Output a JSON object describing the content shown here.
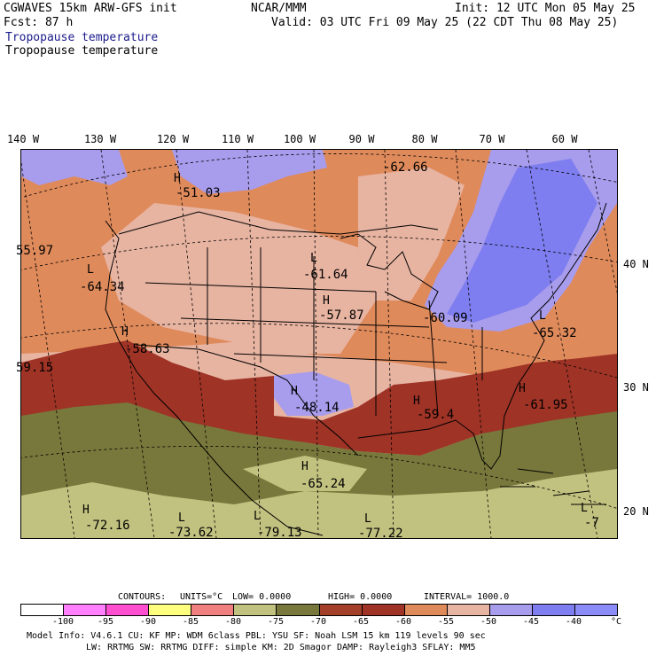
{
  "header": {
    "model_line": "CGWAVES 15km ARW-GFS init",
    "fcst_label": "Fcst:   87 h",
    "center": "NCAR/MMM",
    "init": "Init: 12 UTC Mon 05 May 25",
    "valid": "Valid: 03 UTC Fri 09 May 25 (22 CDT Thu 08 May 25)",
    "field_title_1": "Tropopause temperature",
    "field_title_2": "Tropopause temperature"
  },
  "map": {
    "lon_labels": [
      "140 W",
      "130 W",
      "120 W",
      "110 W",
      "100 W",
      "90 W",
      "80 W",
      "70 W",
      "60 W"
    ],
    "lat_labels": [
      "40 N",
      "30 N",
      "20 N"
    ],
    "annotations": [
      {
        "type": "H",
        "value": "-51.03"
      },
      {
        "type": "",
        "value": "-62.66"
      },
      {
        "type": "",
        "value": "55.97"
      },
      {
        "type": "L",
        "value": "-64.34"
      },
      {
        "type": "L",
        "value": "-61.64"
      },
      {
        "type": "H",
        "value": "-57.87"
      },
      {
        "type": "",
        "value": "-60.09"
      },
      {
        "type": "L",
        "value": "-65.32"
      },
      {
        "type": "H",
        "value": "-58.63"
      },
      {
        "type": "",
        "value": "59.15"
      },
      {
        "type": "H",
        "value": "-48.14"
      },
      {
        "type": "H",
        "value": "-59.4"
      },
      {
        "type": "H",
        "value": "-61.95"
      },
      {
        "type": "H",
        "value": "-65.24"
      },
      {
        "type": "H",
        "value": "-72.16"
      },
      {
        "type": "L",
        "value": "-73.62"
      },
      {
        "type": "L",
        "value": "-79.13"
      },
      {
        "type": "L",
        "value": "-77.22"
      },
      {
        "type": "L",
        "value": "-7"
      }
    ],
    "colors": {
      "purple_light": "#a89cec",
      "blue_purple": "#7e7ef0",
      "salmon_light": "#e8b4a2",
      "orange": "#df8a5b",
      "dark_red": "#9e3326",
      "olive": "#78783c",
      "khaki": "#c2c280"
    }
  },
  "contours_line": {
    "contours": "CONTOURS:",
    "units": "UNITS=°C",
    "low": "LOW=  0.0000",
    "high": "HIGH=  0.0000",
    "interval": "INTERVAL=    1000.0"
  },
  "colorbar": {
    "colors": [
      "#ffffff",
      "#ff7fff",
      "#ff4fd0",
      "#ffff7f",
      "#f08080",
      "#c2c280",
      "#78783c",
      "#a4402a",
      "#9e3326",
      "#df8a5b",
      "#e8b4a2",
      "#a89cec",
      "#7e7ef0",
      "#8c8cf8"
    ],
    "labels": [
      "-100",
      "-95",
      "-90",
      "-85",
      "-80",
      "-75",
      "-70",
      "-65",
      "-60",
      "-55",
      "-50",
      "-45",
      "-40",
      "°C"
    ]
  },
  "footer": {
    "line1": "Model Info: V4.6.1      CU: KF       MP: WDM 6class  PBL: YSU        SF: Noah LSM    15 km  119 levels  90 sec",
    "line2": "LW: RRTMG    SW: RRTMG  DIFF: simple KM: 2D Smagor DAMP: Rayleigh3  SFLAY: MM5"
  }
}
